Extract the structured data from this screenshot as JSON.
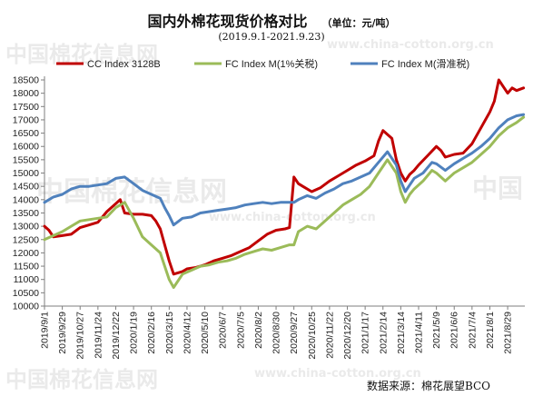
{
  "title": "国内外棉花现货价格对比",
  "unit_label": "（单位：元/吨）",
  "subtitle": "(2019.9.1-2021.9.23)",
  "source": "数据来源：棉花展望BCO",
  "watermark": {
    "text_cn": "中国棉花信息网",
    "text_url": "www.china-cotton.org.cn",
    "text_cn_short": "中国"
  },
  "colors": {
    "cc_index": "#c00000",
    "fc_tariff": "#9bbb59",
    "fc_sliding": "#4f81bd",
    "axis": "#7f7f7f",
    "grid": "#d9d9d9"
  },
  "chart_data": {
    "type": "line",
    "title": "国内外棉花现货价格对比",
    "subtitle": "(2019.9.1-2021.9.23)",
    "ylabel": "",
    "xlabel": "",
    "unit": "元/吨",
    "ylim": [
      10000,
      18500
    ],
    "ytick_step": 500,
    "grid": false,
    "legend_position": "top",
    "x_tick_labels": [
      "2019/9/1",
      "2019/9/29",
      "2019/10/27",
      "2019/11/24",
      "2019/12/22",
      "2020/1/19",
      "2020/2/16",
      "2020/3/15",
      "2020/4/12",
      "2020/5/10",
      "2020/6/7",
      "2020/7/5",
      "2020/8/2",
      "2020/8/30",
      "2020/9/27",
      "2020/10/25",
      "2020/11/22",
      "2020/12/20",
      "2021/1/17",
      "2021/2/14",
      "2021/3/14",
      "2021/4/11",
      "2021/5/9",
      "2021/6/6",
      "2021/7/4",
      "2021/8/1",
      "2021/8/29"
    ],
    "series": [
      {
        "name": "CC Index 3128B",
        "color": "#c00000",
        "points": [
          [
            "2019/9/1",
            13000
          ],
          [
            "2019/9/8",
            12850
          ],
          [
            "2019/9/15",
            12600
          ],
          [
            "2019/9/29",
            12650
          ],
          [
            "2019/10/13",
            12700
          ],
          [
            "2019/10/27",
            12950
          ],
          [
            "2019/11/10",
            13050
          ],
          [
            "2019/11/24",
            13150
          ],
          [
            "2019/12/8",
            13550
          ],
          [
            "2019/12/22",
            13850
          ],
          [
            "2019/12/29",
            14000
          ],
          [
            "2020/1/5",
            13500
          ],
          [
            "2020/1/19",
            13450
          ],
          [
            "2020/2/2",
            13450
          ],
          [
            "2020/2/16",
            13400
          ],
          [
            "2020/2/23",
            13200
          ],
          [
            "2020/3/1",
            12900
          ],
          [
            "2020/3/8",
            12300
          ],
          [
            "2020/3/15",
            11700
          ],
          [
            "2020/3/22",
            11200
          ],
          [
            "2020/4/5",
            11300
          ],
          [
            "2020/4/12",
            11400
          ],
          [
            "2020/4/26",
            11450
          ],
          [
            "2020/5/10",
            11550
          ],
          [
            "2020/5/24",
            11700
          ],
          [
            "2020/6/7",
            11800
          ],
          [
            "2020/6/21",
            11900
          ],
          [
            "2020/7/5",
            12050
          ],
          [
            "2020/7/19",
            12200
          ],
          [
            "2020/8/2",
            12450
          ],
          [
            "2020/8/16",
            12700
          ],
          [
            "2020/8/30",
            12850
          ],
          [
            "2020/9/13",
            12900
          ],
          [
            "2020/9/20",
            12950
          ],
          [
            "2020/9/27",
            14850
          ],
          [
            "2020/10/4",
            14600
          ],
          [
            "2020/10/11",
            14500
          ],
          [
            "2020/10/25",
            14300
          ],
          [
            "2020/11/8",
            14450
          ],
          [
            "2020/11/22",
            14700
          ],
          [
            "2020/12/6",
            14900
          ],
          [
            "2020/12/20",
            15100
          ],
          [
            "2021/1/3",
            15300
          ],
          [
            "2021/1/17",
            15450
          ],
          [
            "2021/1/31",
            15650
          ],
          [
            "2021/2/7",
            16200
          ],
          [
            "2021/2/14",
            16600
          ],
          [
            "2021/2/28",
            16300
          ],
          [
            "2021/3/7",
            15500
          ],
          [
            "2021/3/14",
            15000
          ],
          [
            "2021/3/21",
            14700
          ],
          [
            "2021/3/28",
            14950
          ],
          [
            "2021/4/4",
            15100
          ],
          [
            "2021/4/11",
            15300
          ],
          [
            "2021/4/25",
            15650
          ],
          [
            "2021/5/9",
            16000
          ],
          [
            "2021/5/16",
            15850
          ],
          [
            "2021/5/23",
            15600
          ],
          [
            "2021/6/6",
            15700
          ],
          [
            "2021/6/20",
            15750
          ],
          [
            "2021/7/4",
            16100
          ],
          [
            "2021/7/18",
            16700
          ],
          [
            "2021/8/1",
            17300
          ],
          [
            "2021/8/8",
            17700
          ],
          [
            "2021/8/15",
            18500
          ],
          [
            "2021/8/22",
            18250
          ],
          [
            "2021/8/29",
            18000
          ],
          [
            "2021/9/5",
            18200
          ],
          [
            "2021/9/12",
            18100
          ],
          [
            "2021/9/23",
            18200
          ]
        ]
      },
      {
        "name": "FC Index M(1%关税)",
        "color": "#9bbb59",
        "points": [
          [
            "2019/9/1",
            12500
          ],
          [
            "2019/9/15",
            12650
          ],
          [
            "2019/9/29",
            12800
          ],
          [
            "2019/10/13",
            13000
          ],
          [
            "2019/10/27",
            13200
          ],
          [
            "2019/11/10",
            13250
          ],
          [
            "2019/11/24",
            13300
          ],
          [
            "2019/12/8",
            13350
          ],
          [
            "2019/12/22",
            13700
          ],
          [
            "2020/1/5",
            13900
          ],
          [
            "2020/1/19",
            13300
          ],
          [
            "2020/2/2",
            12600
          ],
          [
            "2020/2/16",
            12300
          ],
          [
            "2020/3/1",
            12000
          ],
          [
            "2020/3/8",
            11500
          ],
          [
            "2020/3/15",
            11000
          ],
          [
            "2020/3/22",
            10700
          ],
          [
            "2020/4/5",
            11200
          ],
          [
            "2020/4/19",
            11350
          ],
          [
            "2020/5/3",
            11500
          ],
          [
            "2020/5/17",
            11550
          ],
          [
            "2020/5/31",
            11650
          ],
          [
            "2020/6/14",
            11700
          ],
          [
            "2020/6/28",
            11800
          ],
          [
            "2020/7/12",
            11950
          ],
          [
            "2020/7/26",
            12050
          ],
          [
            "2020/8/9",
            12150
          ],
          [
            "2020/8/23",
            12100
          ],
          [
            "2020/9/6",
            12200
          ],
          [
            "2020/9/20",
            12300
          ],
          [
            "2020/9/27",
            12300
          ],
          [
            "2020/10/4",
            12800
          ],
          [
            "2020/10/18",
            13000
          ],
          [
            "2020/11/1",
            12900
          ],
          [
            "2020/11/15",
            13200
          ],
          [
            "2020/11/29",
            13500
          ],
          [
            "2020/12/13",
            13800
          ],
          [
            "2020/12/27",
            14000
          ],
          [
            "2021/1/10",
            14200
          ],
          [
            "2021/1/24",
            14500
          ],
          [
            "2021/2/7",
            15000
          ],
          [
            "2021/2/21",
            15500
          ],
          [
            "2021/3/7",
            15000
          ],
          [
            "2021/3/14",
            14300
          ],
          [
            "2021/3/21",
            13900
          ],
          [
            "2021/3/28",
            14200
          ],
          [
            "2021/4/4",
            14400
          ],
          [
            "2021/4/18",
            14700
          ],
          [
            "2021/5/2",
            15100
          ],
          [
            "2021/5/9",
            15000
          ],
          [
            "2021/5/23",
            14700
          ],
          [
            "2021/6/6",
            15000
          ],
          [
            "2021/6/20",
            15200
          ],
          [
            "2021/7/4",
            15400
          ],
          [
            "2021/7/18",
            15700
          ],
          [
            "2021/8/1",
            16000
          ],
          [
            "2021/8/15",
            16400
          ],
          [
            "2021/8/29",
            16700
          ],
          [
            "2021/9/12",
            16900
          ],
          [
            "2021/9/23",
            17100
          ]
        ]
      },
      {
        "name": "FC Index M(滑准税)",
        "color": "#4f81bd",
        "points": [
          [
            "2019/9/1",
            13900
          ],
          [
            "2019/9/15",
            14100
          ],
          [
            "2019/9/29",
            14200
          ],
          [
            "2019/10/13",
            14400
          ],
          [
            "2019/10/27",
            14500
          ],
          [
            "2019/11/10",
            14500
          ],
          [
            "2019/11/24",
            14550
          ],
          [
            "2019/12/8",
            14600
          ],
          [
            "2019/12/22",
            14800
          ],
          [
            "2020/1/5",
            14850
          ],
          [
            "2020/1/19",
            14600
          ],
          [
            "2020/2/2",
            14350
          ],
          [
            "2020/2/16",
            14200
          ],
          [
            "2020/3/1",
            14050
          ],
          [
            "2020/3/8",
            13700
          ],
          [
            "2020/3/15",
            13400
          ],
          [
            "2020/3/22",
            13050
          ],
          [
            "2020/4/5",
            13300
          ],
          [
            "2020/4/19",
            13350
          ],
          [
            "2020/5/3",
            13500
          ],
          [
            "2020/5/17",
            13550
          ],
          [
            "2020/5/31",
            13600
          ],
          [
            "2020/6/14",
            13650
          ],
          [
            "2020/6/28",
            13700
          ],
          [
            "2020/7/12",
            13800
          ],
          [
            "2020/7/26",
            13850
          ],
          [
            "2020/8/9",
            13900
          ],
          [
            "2020/8/23",
            13850
          ],
          [
            "2020/9/6",
            13900
          ],
          [
            "2020/9/20",
            13900
          ],
          [
            "2020/9/27",
            13900
          ],
          [
            "2020/10/4",
            14000
          ],
          [
            "2020/10/18",
            14150
          ],
          [
            "2020/11/1",
            14050
          ],
          [
            "2020/11/15",
            14250
          ],
          [
            "2020/11/29",
            14400
          ],
          [
            "2020/12/13",
            14600
          ],
          [
            "2020/12/27",
            14700
          ],
          [
            "2021/1/10",
            14850
          ],
          [
            "2021/1/24",
            15000
          ],
          [
            "2021/2/7",
            15400
          ],
          [
            "2021/2/21",
            15800
          ],
          [
            "2021/3/7",
            15300
          ],
          [
            "2021/3/14",
            14700
          ],
          [
            "2021/3/21",
            14300
          ],
          [
            "2021/3/28",
            14550
          ],
          [
            "2021/4/4",
            14800
          ],
          [
            "2021/4/18",
            15000
          ],
          [
            "2021/5/2",
            15400
          ],
          [
            "2021/5/9",
            15350
          ],
          [
            "2021/5/23",
            15100
          ],
          [
            "2021/6/6",
            15350
          ],
          [
            "2021/6/20",
            15550
          ],
          [
            "2021/7/4",
            15750
          ],
          [
            "2021/7/18",
            16000
          ],
          [
            "2021/8/1",
            16300
          ],
          [
            "2021/8/15",
            16700
          ],
          [
            "2021/8/29",
            17000
          ],
          [
            "2021/9/12",
            17150
          ],
          [
            "2021/9/23",
            17200
          ]
        ]
      }
    ]
  }
}
